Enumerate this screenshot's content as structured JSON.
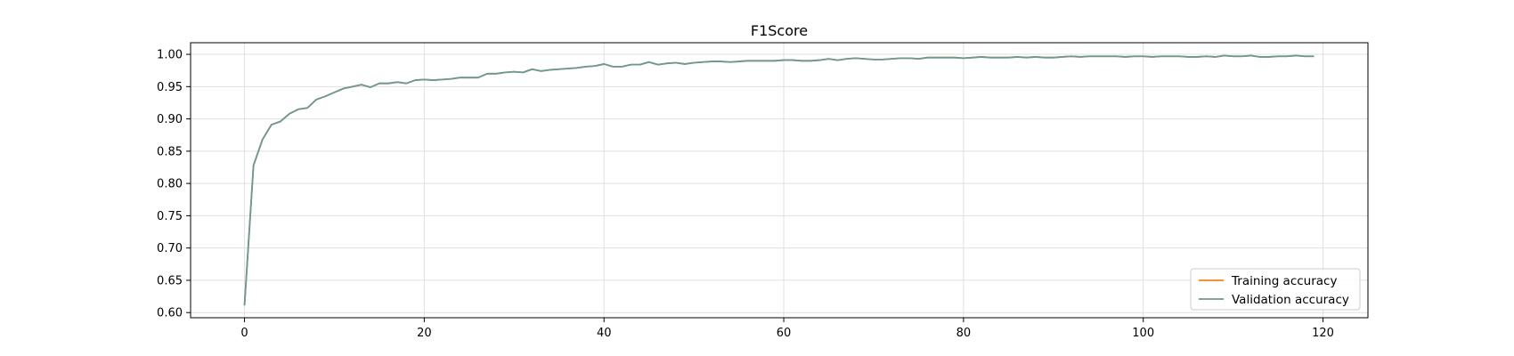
{
  "chart_data": {
    "type": "line",
    "title": "F1Score",
    "xlabel": "",
    "ylabel": "",
    "xlim": [
      -6,
      125
    ],
    "ylim": [
      0.592,
      1.018
    ],
    "xticks": [
      0,
      20,
      40,
      60,
      80,
      100,
      120
    ],
    "yticks": [
      0.6,
      0.65,
      0.7,
      0.75,
      0.8,
      0.85,
      0.9,
      0.95,
      1.0
    ],
    "grid": true,
    "legend": {
      "position": "bottom-right"
    },
    "x": [
      0,
      1,
      2,
      3,
      4,
      5,
      6,
      7,
      8,
      9,
      10,
      11,
      12,
      13,
      14,
      15,
      16,
      17,
      18,
      19,
      20,
      21,
      22,
      23,
      24,
      25,
      26,
      27,
      28,
      29,
      30,
      31,
      32,
      33,
      34,
      35,
      36,
      37,
      38,
      39,
      40,
      41,
      42,
      43,
      44,
      45,
      46,
      47,
      48,
      49,
      50,
      51,
      52,
      53,
      54,
      55,
      56,
      57,
      58,
      59,
      60,
      61,
      62,
      63,
      64,
      65,
      66,
      67,
      68,
      69,
      70,
      71,
      72,
      73,
      74,
      75,
      76,
      77,
      78,
      79,
      80,
      81,
      82,
      83,
      84,
      85,
      86,
      87,
      88,
      89,
      90,
      91,
      92,
      93,
      94,
      95,
      96,
      97,
      98,
      99,
      100,
      101,
      102,
      103,
      104,
      105,
      106,
      107,
      108,
      109,
      110,
      111,
      112,
      113,
      114,
      115,
      116,
      117,
      118,
      119
    ],
    "series": [
      {
        "name": "Training accuracy",
        "color": "#ff7f0e",
        "values": [
          0.611,
          0.828,
          0.868,
          0.891,
          0.896,
          0.908,
          0.915,
          0.917,
          0.93,
          0.935,
          0.941,
          0.947,
          0.95,
          0.953,
          0.949,
          0.955,
          0.955,
          0.957,
          0.955,
          0.96,
          0.961,
          0.96,
          0.961,
          0.962,
          0.964,
          0.964,
          0.964,
          0.97,
          0.97,
          0.972,
          0.973,
          0.972,
          0.977,
          0.974,
          0.976,
          0.977,
          0.978,
          0.979,
          0.981,
          0.982,
          0.985,
          0.981,
          0.981,
          0.984,
          0.984,
          0.988,
          0.984,
          0.986,
          0.987,
          0.985,
          0.987,
          0.988,
          0.989,
          0.989,
          0.988,
          0.989,
          0.99,
          0.99,
          0.99,
          0.99,
          0.991,
          0.991,
          0.99,
          0.99,
          0.991,
          0.993,
          0.991,
          0.993,
          0.994,
          0.993,
          0.992,
          0.992,
          0.993,
          0.994,
          0.994,
          0.993,
          0.995,
          0.995,
          0.995,
          0.995,
          0.994,
          0.995,
          0.996,
          0.995,
          0.995,
          0.995,
          0.996,
          0.995,
          0.996,
          0.995,
          0.995,
          0.996,
          0.997,
          0.996,
          0.997,
          0.997,
          0.997,
          0.997,
          0.996,
          0.997,
          0.997,
          0.996,
          0.997,
          0.997,
          0.997,
          0.996,
          0.996,
          0.997,
          0.996,
          0.998,
          0.997,
          0.997,
          0.998,
          0.996,
          0.996,
          0.997,
          0.997,
          0.998,
          0.997,
          0.997
        ]
      },
      {
        "name": "Validation accuracy",
        "color": "#6a9a94",
        "values": [
          0.611,
          0.828,
          0.868,
          0.891,
          0.896,
          0.908,
          0.915,
          0.917,
          0.93,
          0.935,
          0.941,
          0.947,
          0.95,
          0.953,
          0.949,
          0.955,
          0.955,
          0.957,
          0.955,
          0.96,
          0.961,
          0.96,
          0.961,
          0.962,
          0.964,
          0.964,
          0.964,
          0.97,
          0.97,
          0.972,
          0.973,
          0.972,
          0.977,
          0.974,
          0.976,
          0.977,
          0.978,
          0.979,
          0.981,
          0.982,
          0.985,
          0.981,
          0.981,
          0.984,
          0.984,
          0.988,
          0.984,
          0.986,
          0.987,
          0.985,
          0.987,
          0.988,
          0.989,
          0.989,
          0.988,
          0.989,
          0.99,
          0.99,
          0.99,
          0.99,
          0.991,
          0.991,
          0.99,
          0.99,
          0.991,
          0.993,
          0.991,
          0.993,
          0.994,
          0.993,
          0.992,
          0.992,
          0.993,
          0.994,
          0.994,
          0.993,
          0.995,
          0.995,
          0.995,
          0.995,
          0.994,
          0.995,
          0.996,
          0.995,
          0.995,
          0.995,
          0.996,
          0.995,
          0.996,
          0.995,
          0.995,
          0.996,
          0.997,
          0.996,
          0.997,
          0.997,
          0.997,
          0.997,
          0.996,
          0.997,
          0.997,
          0.996,
          0.997,
          0.997,
          0.997,
          0.996,
          0.996,
          0.997,
          0.996,
          0.998,
          0.997,
          0.997,
          0.998,
          0.996,
          0.996,
          0.997,
          0.997,
          0.998,
          0.997,
          0.997
        ]
      }
    ]
  }
}
